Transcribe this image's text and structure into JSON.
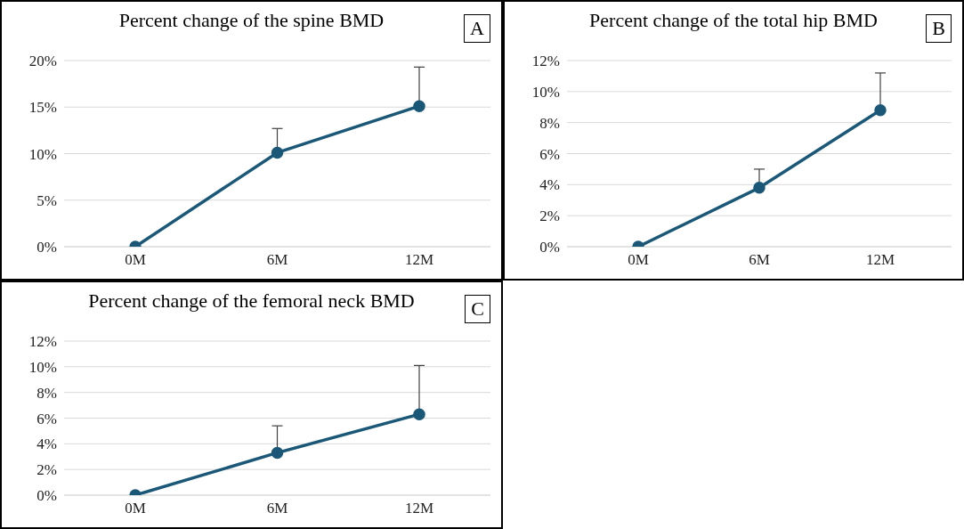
{
  "chart_data": [
    {
      "type": "line",
      "title": "Percent change of the spine BMD",
      "annotations": [
        "A"
      ],
      "categories": [
        "0M",
        "6M",
        "12M"
      ],
      "series": [
        {
          "color": "#1b5878",
          "values": [
            0,
            10.1,
            15.1
          ],
          "errors": [
            null,
            [
              10.1,
              12.7
            ],
            [
              15.1,
              19.3
            ]
          ]
        }
      ],
      "ylim": [
        0,
        20
      ],
      "yticks": [
        {
          "value": 0,
          "label": "0%"
        },
        {
          "value": 5,
          "label": "5%"
        },
        {
          "value": 10,
          "label": "10%"
        },
        {
          "value": 15,
          "label": "15%"
        },
        {
          "value": 20,
          "label": "20%"
        }
      ],
      "grid": "y",
      "marker": "circle",
      "line_style": "solid",
      "legend": false
    },
    {
      "type": "line",
      "title": "Percent change of the total hip BMD",
      "annotations": [
        "B"
      ],
      "categories": [
        "0M",
        "6M",
        "12M"
      ],
      "series": [
        {
          "color": "#1b5878",
          "values": [
            0,
            3.8,
            8.8
          ],
          "errors": [
            null,
            [
              3.8,
              5.0
            ],
            [
              8.8,
              11.2
            ]
          ]
        }
      ],
      "ylim": [
        0,
        12
      ],
      "yticks": [
        {
          "value": 0,
          "label": "0%"
        },
        {
          "value": 2,
          "label": "2%"
        },
        {
          "value": 4,
          "label": "4%"
        },
        {
          "value": 6,
          "label": "6%"
        },
        {
          "value": 8,
          "label": "8%"
        },
        {
          "value": 10,
          "label": "10%"
        },
        {
          "value": 12,
          "label": "12%"
        }
      ],
      "grid": "y",
      "marker": "circle",
      "line_style": "solid",
      "legend": false
    },
    {
      "type": "line",
      "title": "Percent change of the femoral neck BMD",
      "annotations": [
        "C"
      ],
      "categories": [
        "0M",
        "6M",
        "12M"
      ],
      "series": [
        {
          "color": "#1b5878",
          "values": [
            0,
            3.3,
            6.3
          ],
          "errors": [
            null,
            [
              3.3,
              5.4
            ],
            [
              6.3,
              10.1
            ]
          ]
        }
      ],
      "ylim": [
        0,
        12
      ],
      "yticks": [
        {
          "value": 0,
          "label": "0%"
        },
        {
          "value": 2,
          "label": "2%"
        },
        {
          "value": 4,
          "label": "4%"
        },
        {
          "value": 6,
          "label": "6%"
        },
        {
          "value": 8,
          "label": "8%"
        },
        {
          "value": 10,
          "label": "10%"
        },
        {
          "value": 12,
          "label": "12%"
        }
      ],
      "grid": "y",
      "marker": "circle",
      "line_style": "solid",
      "legend": false
    }
  ]
}
